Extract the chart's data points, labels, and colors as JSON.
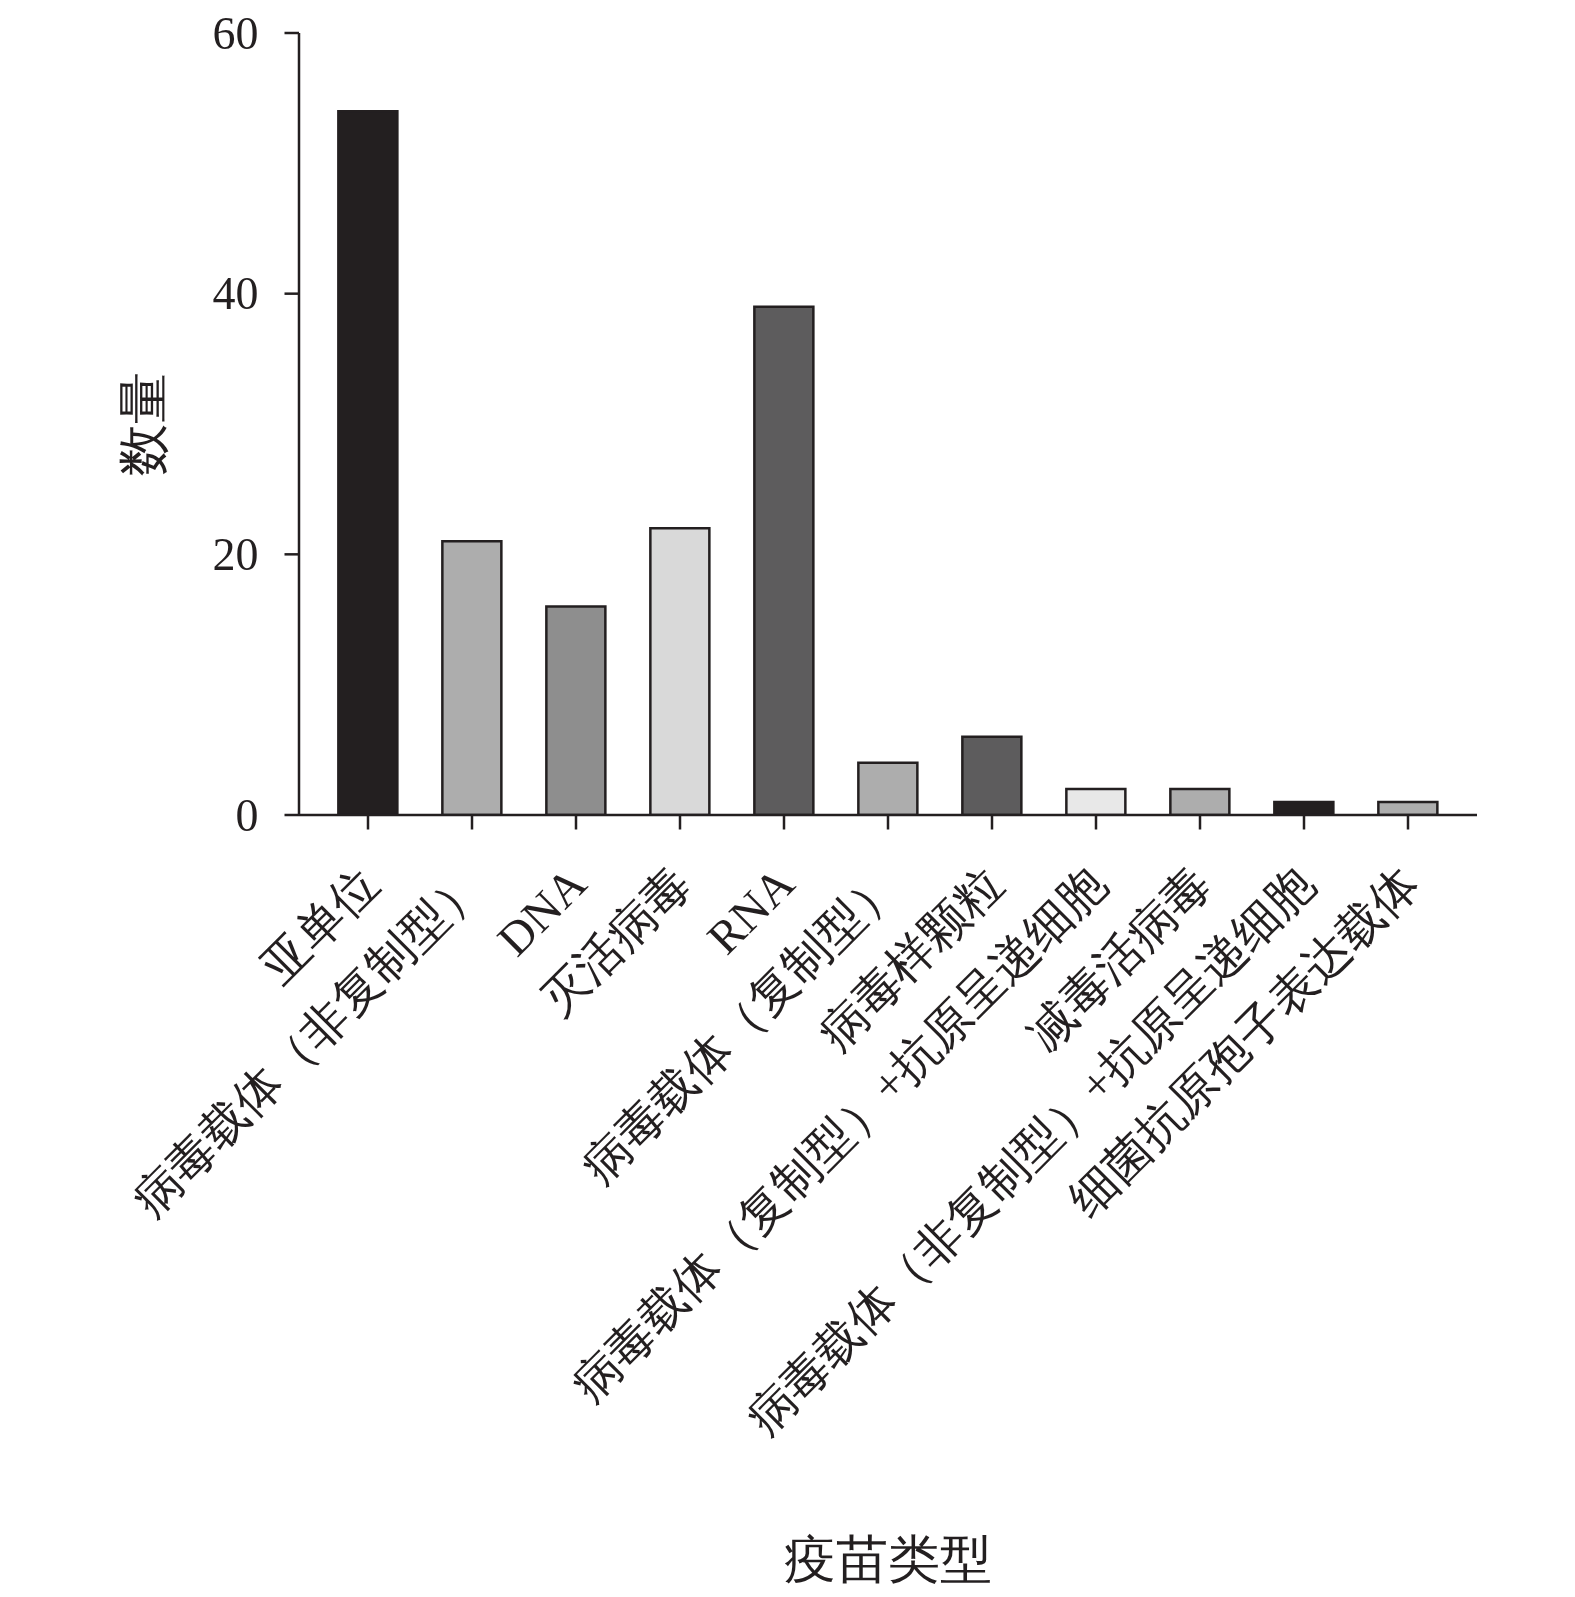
{
  "chart_data": {
    "type": "bar",
    "xlabel": "疫苗类型",
    "ylabel": "数量",
    "categories": [
      "亚单位",
      "病毒载体（非复制型）",
      "DNA",
      "灭活病毒",
      "RNA",
      "病毒载体（复制型）",
      "病毒样颗粒",
      "病毒载体（复制型）+抗原呈递细胞",
      "减毒活病毒",
      "病毒载体（非复制型）+抗原呈递细胞",
      "细菌抗原孢子表达载体"
    ],
    "values": [
      54,
      21,
      16,
      22,
      39,
      4,
      6,
      2,
      2,
      1,
      1
    ],
    "colors": [
      "#231f20",
      "#adadad",
      "#8e8e8e",
      "#d9d9d9",
      "#5d5c5d",
      "#adadad",
      "#5d5c5d",
      "#e8e8e8",
      "#adadad",
      "#231f20",
      "#adadad"
    ],
    "ylim": [
      0,
      60
    ],
    "yticks": [
      0,
      20,
      40,
      60
    ]
  }
}
